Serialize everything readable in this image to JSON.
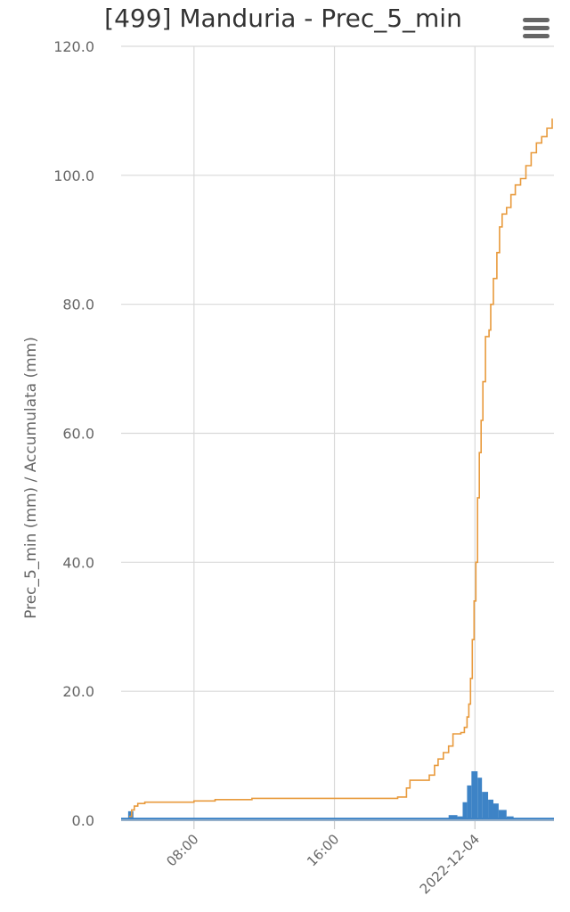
{
  "chart_data": {
    "type": "bar+line",
    "title": "[499] Manduria - Prec_5_min",
    "ylabel": "Prec_5_min (mm) / Accumulata (mm)",
    "ylim": [
      0,
      120
    ],
    "yticks": [
      0,
      20,
      40,
      60,
      80,
      100,
      120
    ],
    "ytick_labels": [
      "0.0",
      "20.0",
      "40.0",
      "60.0",
      "80.0",
      "100.0",
      "120.0"
    ],
    "xlim_hours": [
      3.85,
      28.5
    ],
    "xticks": [
      {
        "hour": 8,
        "label": "08:00"
      },
      {
        "hour": 16,
        "label": "16:00"
      },
      {
        "hour": 24,
        "label": "2022-12-04"
      }
    ],
    "grid": true,
    "series": [
      {
        "kind": "line",
        "color": "#e89a3c",
        "points": [
          [
            4.3,
            0.6
          ],
          [
            4.45,
            1.6
          ],
          [
            4.6,
            2.2
          ],
          [
            4.8,
            2.6
          ],
          [
            5.2,
            2.8
          ],
          [
            6.5,
            2.8
          ],
          [
            7.9,
            2.8
          ],
          [
            8.0,
            3.0
          ],
          [
            9.0,
            3.0
          ],
          [
            9.2,
            3.2
          ],
          [
            11.0,
            3.2
          ],
          [
            11.3,
            3.4
          ],
          [
            15.5,
            3.4
          ],
          [
            16.0,
            3.4
          ],
          [
            18.0,
            3.4
          ],
          [
            19.3,
            3.4
          ],
          [
            19.6,
            3.6
          ],
          [
            19.9,
            3.6
          ],
          [
            20.1,
            5.0
          ],
          [
            20.3,
            6.2
          ],
          [
            21.2,
            6.2
          ],
          [
            21.4,
            7.0
          ],
          [
            21.7,
            8.5
          ],
          [
            21.9,
            9.5
          ],
          [
            22.2,
            10.5
          ],
          [
            22.5,
            11.5
          ],
          [
            22.75,
            13.4
          ],
          [
            23.2,
            13.6
          ],
          [
            23.4,
            14.4
          ],
          [
            23.55,
            16.0
          ],
          [
            23.65,
            18.0
          ],
          [
            23.75,
            22.0
          ],
          [
            23.85,
            28.0
          ],
          [
            23.95,
            34.0
          ],
          [
            24.05,
            40.0
          ],
          [
            24.15,
            50.0
          ],
          [
            24.25,
            57.0
          ],
          [
            24.35,
            62.0
          ],
          [
            24.45,
            68.0
          ],
          [
            24.6,
            75.0
          ],
          [
            24.8,
            76.0
          ],
          [
            24.9,
            80.0
          ],
          [
            25.05,
            84.0
          ],
          [
            25.25,
            88.0
          ],
          [
            25.4,
            92.0
          ],
          [
            25.55,
            94.0
          ],
          [
            25.8,
            95.0
          ],
          [
            26.05,
            97.0
          ],
          [
            26.3,
            98.5
          ],
          [
            26.6,
            99.5
          ],
          [
            26.9,
            101.5
          ],
          [
            27.2,
            103.5
          ],
          [
            27.5,
            105.0
          ],
          [
            27.8,
            106.0
          ],
          [
            28.1,
            107.3
          ],
          [
            28.4,
            108.8
          ]
        ]
      },
      {
        "kind": "bar",
        "color": "#3d83c6",
        "baseline": 0.4,
        "bars": [
          [
            4.25,
            4.55,
            1.4
          ],
          [
            22.5,
            23.0,
            0.8
          ],
          [
            23.0,
            23.3,
            0.6
          ],
          [
            23.3,
            23.55,
            2.8
          ],
          [
            23.55,
            23.8,
            5.4
          ],
          [
            23.8,
            24.15,
            7.6
          ],
          [
            24.15,
            24.4,
            6.6
          ],
          [
            24.4,
            24.75,
            4.4
          ],
          [
            24.75,
            25.05,
            3.2
          ],
          [
            25.05,
            25.35,
            2.6
          ],
          [
            25.35,
            25.8,
            1.6
          ],
          [
            25.8,
            26.2,
            0.6
          ]
        ]
      }
    ]
  },
  "ui": {
    "menu_icon": "hamburger-menu-icon"
  }
}
